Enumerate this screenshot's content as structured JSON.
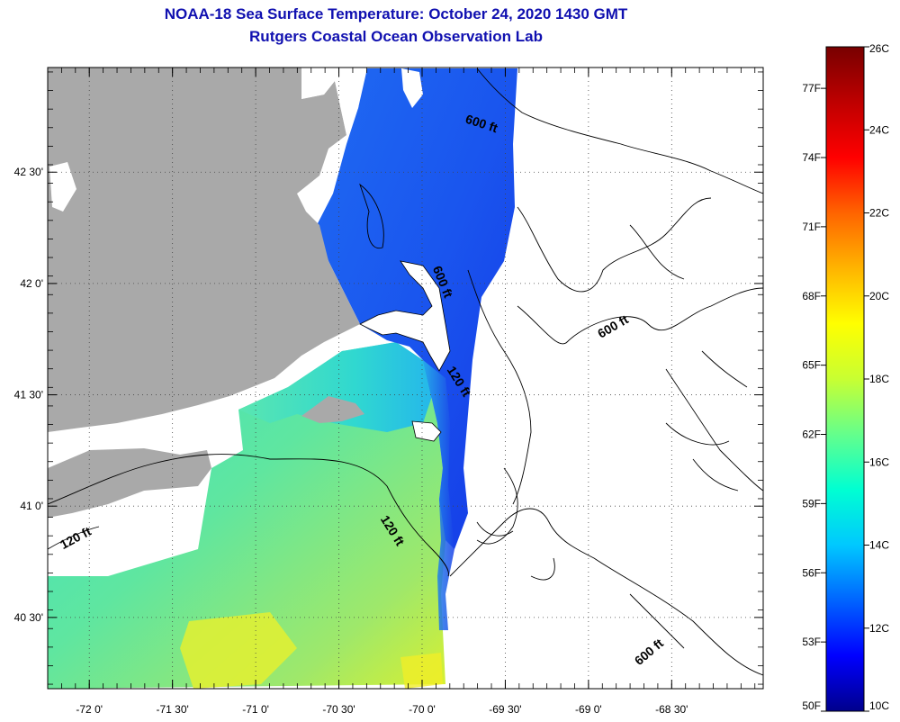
{
  "header": {
    "title": "NOAA-18 Sea Surface Temperature:  October 24, 2020 1430 GMT",
    "subtitle": "Rutgers Coastal Ocean Observation Lab"
  },
  "map": {
    "lon_ticks": [
      {
        "lon": -72.0,
        "label": "-72 0'"
      },
      {
        "lon": -71.5,
        "label": "-71 30'"
      },
      {
        "lon": -71.0,
        "label": "-71 0'"
      },
      {
        "lon": -70.5,
        "label": "-70 30'"
      },
      {
        "lon": -70.0,
        "label": "-70 0'"
      },
      {
        "lon": -69.5,
        "label": "-69 30'"
      },
      {
        "lon": -69.0,
        "label": "-69 0'"
      },
      {
        "lon": -68.5,
        "label": "-68 30'"
      }
    ],
    "lat_ticks": [
      {
        "lat": 42.5,
        "label": "42 30'"
      },
      {
        "lat": 42.0,
        "label": "42 0'"
      },
      {
        "lat": 41.5,
        "label": "41 30'"
      },
      {
        "lat": 41.0,
        "label": "41 0'"
      },
      {
        "lat": 40.5,
        "label": "40 30'"
      }
    ],
    "lon_range": [
      -72.25,
      -67.95
    ],
    "lat_range": [
      40.18,
      42.97
    ],
    "contour_labels": [
      {
        "text": "600 ft",
        "lon": -69.65,
        "lat": 42.7,
        "angle": 18
      },
      {
        "text": "600 ft",
        "lon": -69.9,
        "lat": 42.0,
        "angle": 68
      },
      {
        "text": "600 ft",
        "lon": -68.84,
        "lat": 41.79,
        "angle": -30
      },
      {
        "text": "120 ft",
        "lon": -69.8,
        "lat": 41.55,
        "angle": 58
      },
      {
        "text": "120 ft",
        "lon": -70.2,
        "lat": 40.88,
        "angle": 58
      },
      {
        "text": "120 ft",
        "lon": -72.07,
        "lat": 40.84,
        "angle": -28
      },
      {
        "text": "600 ft",
        "lon": -68.62,
        "lat": 40.33,
        "angle": -40
      }
    ]
  },
  "colorbar": {
    "celsius_min": 10,
    "celsius_max": 26,
    "celsius_labels": [
      "26C",
      "24C",
      "22C",
      "20C",
      "18C",
      "16C",
      "14C",
      "12C",
      "10C"
    ],
    "fahrenheit_labels": [
      {
        "value": 77,
        "label": "77F"
      },
      {
        "value": 74,
        "label": "74F"
      },
      {
        "value": 71,
        "label": "71F"
      },
      {
        "value": 68,
        "label": "68F"
      },
      {
        "value": 65,
        "label": "65F"
      },
      {
        "value": 62,
        "label": "62F"
      },
      {
        "value": 59,
        "label": "59F"
      },
      {
        "value": 56,
        "label": "56F"
      },
      {
        "value": 53,
        "label": "53F"
      },
      {
        "value": 50,
        "label": "50F"
      }
    ],
    "colors": [
      "#00008c",
      "#0000ff",
      "#0064ff",
      "#00c8ff",
      "#00ffd2",
      "#64ff8c",
      "#c8ff32",
      "#ffff00",
      "#ffb400",
      "#ff6400",
      "#ff0000",
      "#be0000",
      "#780000"
    ]
  },
  "colors": {
    "title": "#1010b0",
    "land": "#a9a9a9",
    "sst_cold": "#1a5cf0",
    "sst_mid": "#2fd0e0",
    "sst_warm": "#c8f03a"
  }
}
